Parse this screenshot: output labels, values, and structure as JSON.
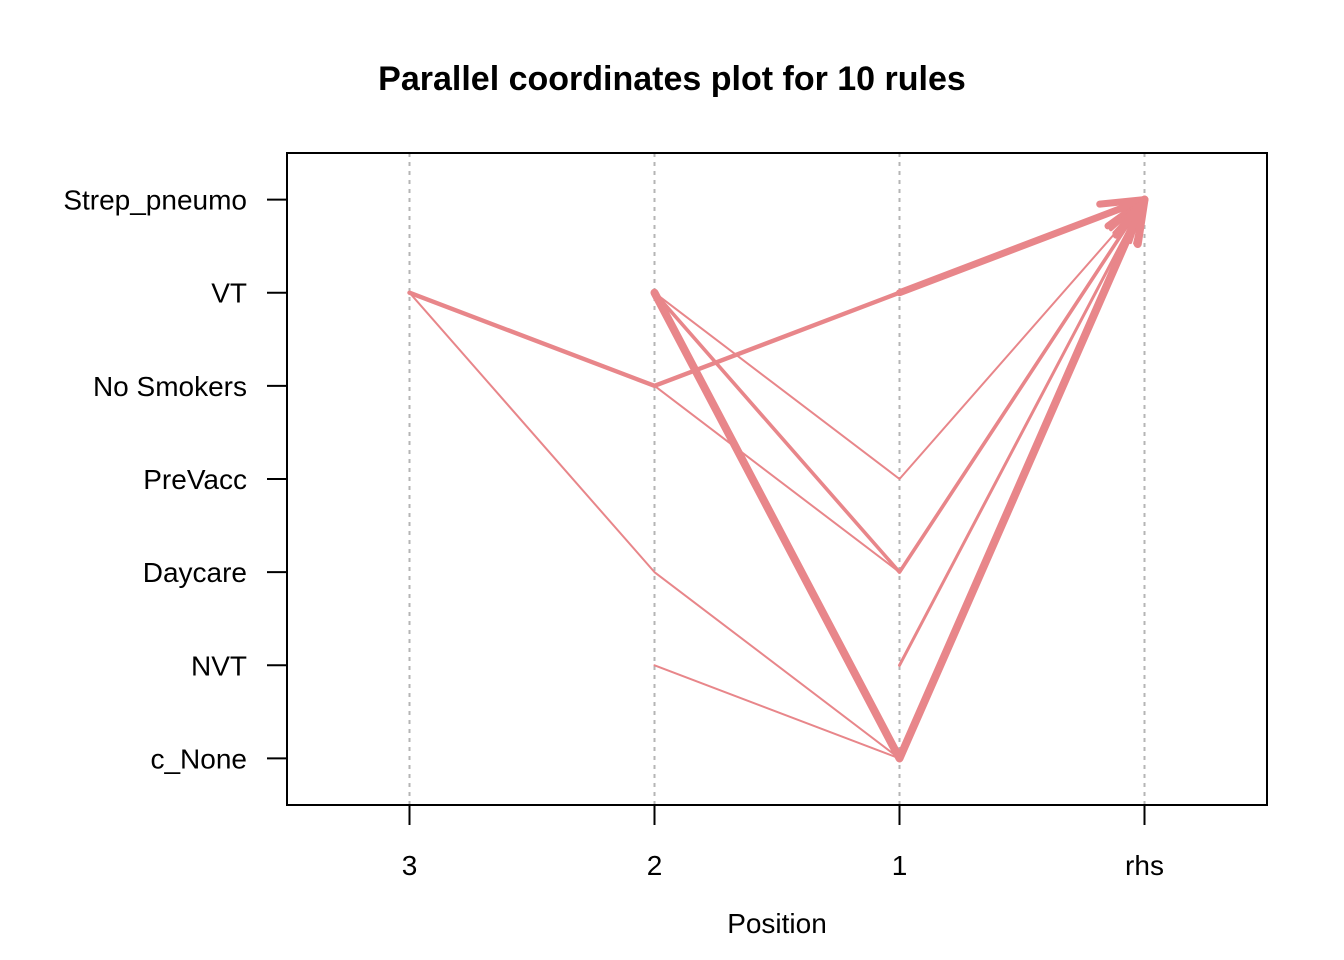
{
  "chart_data": {
    "type": "parallel-coordinates",
    "title": "Parallel coordinates plot for 10 rules",
    "xlabel": "Position",
    "ylabel": "",
    "x_categories": [
      "3",
      "2",
      "1",
      "rhs"
    ],
    "y_categories": [
      "Strep_pneumo",
      "VT",
      "No Smokers",
      "PreVacc",
      "Daycare",
      "NVT",
      "c_None"
    ],
    "rhs_item": "Strep_pneumo",
    "grid": true,
    "line_color": "#E8868A",
    "grid_color": "#B5B5B5",
    "rules": [
      {
        "lhs": [
          "VT"
        ],
        "weight": 3.5
      },
      {
        "lhs": [
          "VT",
          "No Smokers",
          "VT"
        ],
        "weight": 2.2
      },
      {
        "lhs": [
          "VT",
          "PreVacc"
        ],
        "weight": 1.0
      },
      {
        "lhs": [
          "VT",
          "Daycare"
        ],
        "weight": 1.8
      },
      {
        "lhs": [
          "No Smokers",
          "Daycare"
        ],
        "weight": 1.0
      },
      {
        "lhs": [
          "NVT"
        ],
        "weight": 1.5
      },
      {
        "lhs": [
          "VT",
          "c_None"
        ],
        "weight": 4.0
      },
      {
        "lhs": [
          "VT",
          "Daycare",
          "c_None"
        ],
        "weight": 1.0
      },
      {
        "lhs": [
          "NVT",
          "c_None"
        ],
        "weight": 1.0
      },
      {
        "lhs": [
          "VT",
          "c_None"
        ],
        "weight": 3.0
      }
    ]
  }
}
